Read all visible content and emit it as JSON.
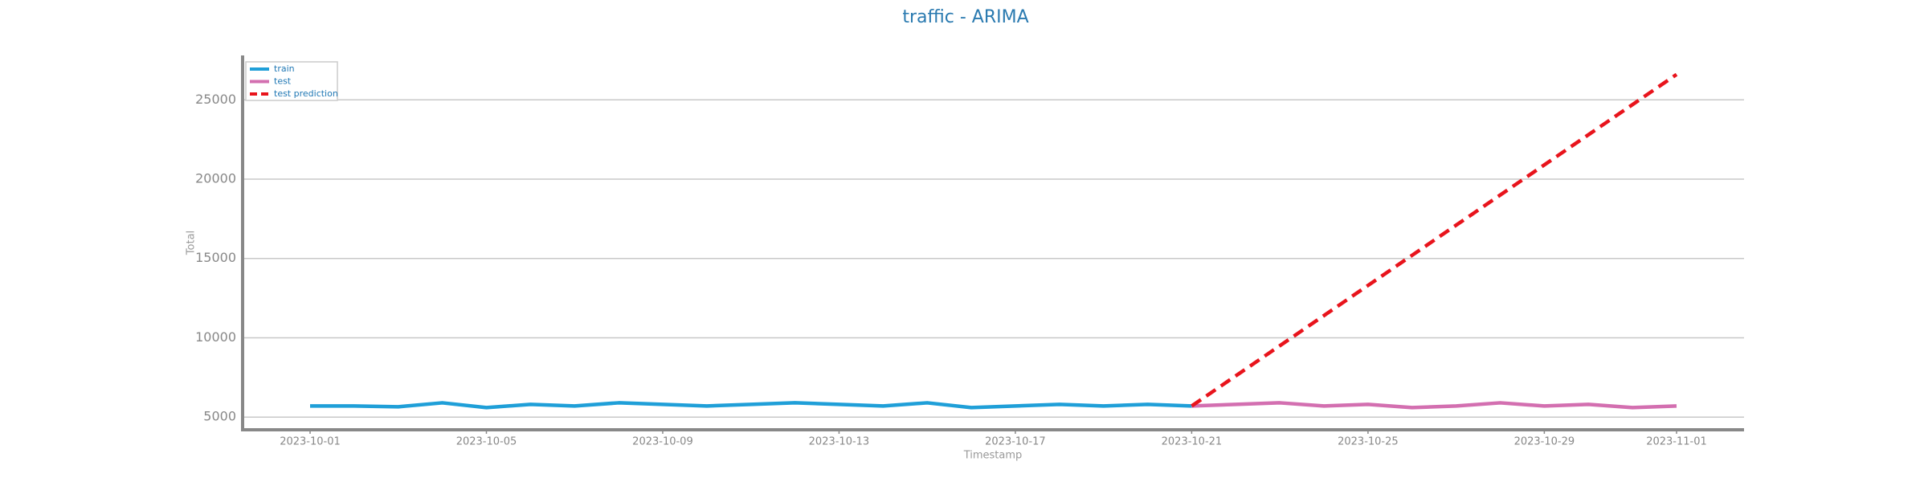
{
  "chart_data": {
    "type": "line",
    "title": "traffic - ARIMA",
    "xlabel": "Timestamp",
    "ylabel": "Total",
    "x": [
      "2023-10-01",
      "2023-10-02",
      "2023-10-03",
      "2023-10-04",
      "2023-10-05",
      "2023-10-06",
      "2023-10-07",
      "2023-10-08",
      "2023-10-09",
      "2023-10-10",
      "2023-10-11",
      "2023-10-12",
      "2023-10-13",
      "2023-10-14",
      "2023-10-15",
      "2023-10-16",
      "2023-10-17",
      "2023-10-18",
      "2023-10-19",
      "2023-10-20",
      "2023-10-21",
      "2023-10-22",
      "2023-10-23",
      "2023-10-24",
      "2023-10-25",
      "2023-10-26",
      "2023-10-27",
      "2023-10-28",
      "2023-10-29",
      "2023-10-30",
      "2023-10-31",
      "2023-11-01"
    ],
    "series": [
      {
        "name": "train",
        "color": "#1f9fd8",
        "dash": false,
        "values": [
          5700,
          5700,
          5650,
          5900,
          5600,
          5800,
          5700,
          5900,
          5800,
          5700,
          5800,
          5900,
          5800,
          5700,
          5900,
          5600,
          5700,
          5800,
          5700,
          5800,
          5700,
          null,
          null,
          null,
          null,
          null,
          null,
          null,
          null,
          null,
          null,
          null
        ]
      },
      {
        "name": "test",
        "color": "#d36fb0",
        "dash": false,
        "values": [
          null,
          null,
          null,
          null,
          null,
          null,
          null,
          null,
          null,
          null,
          null,
          null,
          null,
          null,
          null,
          null,
          null,
          null,
          null,
          null,
          5700,
          5800,
          5900,
          5700,
          5800,
          5600,
          5700,
          5900,
          5700,
          5800,
          5600,
          5700
        ]
      },
      {
        "name": "test prediction",
        "color": "#e8141c",
        "dash": true,
        "values": [
          null,
          null,
          null,
          null,
          null,
          null,
          null,
          null,
          null,
          null,
          null,
          null,
          null,
          null,
          null,
          null,
          null,
          null,
          null,
          null,
          5700,
          7600,
          9500,
          11400,
          13300,
          15200,
          17100,
          19000,
          20900,
          22800,
          24700,
          26600
        ]
      }
    ],
    "ylim": [
      4200,
      27800
    ],
    "yticks": [
      5000,
      10000,
      15000,
      20000,
      25000
    ],
    "xticks": [
      "2023-10-01",
      "2023-10-05",
      "2023-10-09",
      "2023-10-13",
      "2023-10-17",
      "2023-10-21",
      "2023-10-25",
      "2023-10-29",
      "2023-11-01"
    ],
    "grid": true,
    "legend": "upper left"
  }
}
